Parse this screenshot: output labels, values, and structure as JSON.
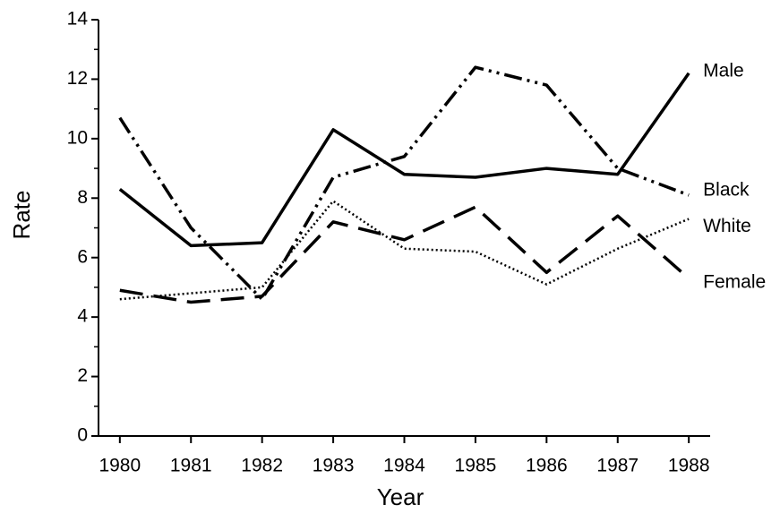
{
  "chart_data": {
    "type": "line",
    "x_label": "Year",
    "y_label": "Rate",
    "x": [
      1980,
      1981,
      1982,
      1983,
      1984,
      1985,
      1986,
      1987,
      1988
    ],
    "series": [
      {
        "name": "Male",
        "color": "#000000",
        "dash": "solid",
        "values": [
          8.3,
          6.4,
          6.5,
          10.3,
          8.8,
          8.7,
          9.0,
          8.8,
          12.2
        ]
      },
      {
        "name": "Black",
        "color": "#000000",
        "dash": "dashdotdot",
        "values": [
          10.7,
          7.0,
          4.6,
          8.7,
          9.4,
          12.4,
          11.8,
          9.0,
          8.1
        ]
      },
      {
        "name": "White",
        "color": "#000000",
        "dash": "dotted",
        "values": [
          4.6,
          4.8,
          5.0,
          7.9,
          6.3,
          6.2,
          5.1,
          6.3,
          7.3
        ]
      },
      {
        "name": "Female",
        "color": "#000000",
        "dash": "dashed",
        "values": [
          4.9,
          4.5,
          4.7,
          7.2,
          6.6,
          7.7,
          5.5,
          7.4,
          5.3
        ]
      }
    ],
    "xlim": [
      1979.7,
      1988.3
    ],
    "xticks": [
      1980,
      1981,
      1982,
      1983,
      1984,
      1985,
      1986,
      1987,
      1988
    ],
    "ylim": [
      0,
      14
    ],
    "yticks": [
      0,
      2,
      4,
      6,
      8,
      10,
      12,
      14
    ],
    "yminorticks": [
      1,
      3,
      5,
      7,
      9,
      11,
      13
    ],
    "grid": false
  }
}
